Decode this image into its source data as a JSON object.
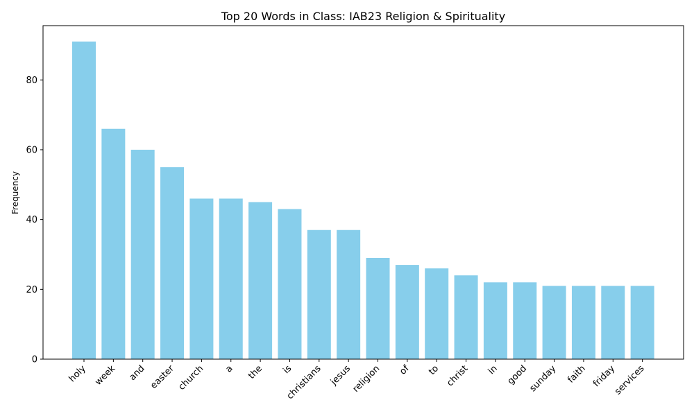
{
  "chart_data": {
    "type": "bar",
    "title": "Top 20 Words in Class: IAB23 Religion & Spirituality",
    "xlabel": "",
    "ylabel": "Frequency",
    "categories": [
      "holy",
      "week",
      "and",
      "easter",
      "church",
      "a",
      "the",
      "is",
      "christians",
      "jesus",
      "religion",
      "of",
      "to",
      "christ",
      "in",
      "good",
      "sunday",
      "faith",
      "friday",
      "services"
    ],
    "values": [
      91,
      66,
      60,
      55,
      46,
      46,
      45,
      43,
      37,
      37,
      29,
      27,
      26,
      24,
      22,
      22,
      21,
      21,
      21,
      21
    ],
    "ylim": [
      0,
      95.55
    ],
    "yticks": [
      0,
      20,
      40,
      60,
      80
    ],
    "bar_color": "#87CEEB",
    "grid": false,
    "legend": "none"
  }
}
